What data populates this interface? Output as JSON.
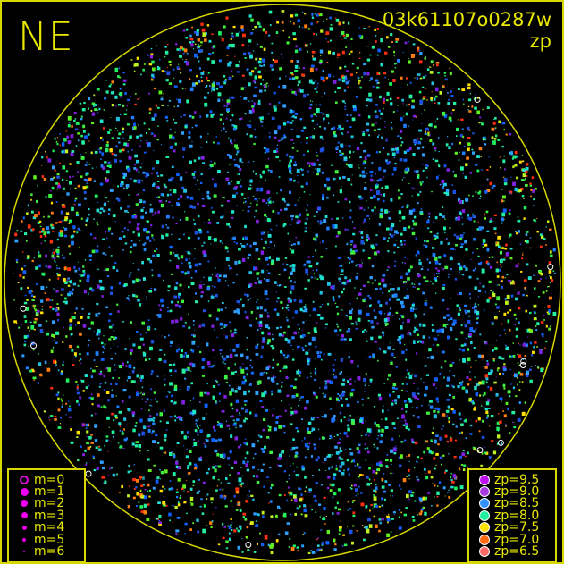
{
  "header": {
    "direction": "NE",
    "image_id": "03k61107o0287w",
    "mode": "zp"
  },
  "colors": {
    "frame": "#d8d800",
    "horizon_circle": "#d8d800",
    "background": "#000000"
  },
  "magnitude_legend": [
    {
      "label": "m=0",
      "size": 10,
      "hollow": true
    },
    {
      "label": "m=1",
      "size": 9
    },
    {
      "label": "m=2",
      "size": 8
    },
    {
      "label": "m=3",
      "size": 7
    },
    {
      "label": "m=4",
      "size": 5
    },
    {
      "label": "m=5",
      "size": 4
    },
    {
      "label": "m=6",
      "size": 2
    }
  ],
  "zp_legend": [
    {
      "label": "zp=9.5",
      "color": "#c010f0"
    },
    {
      "label": "zp=9.0",
      "color": "#a838e0"
    },
    {
      "label": "zp=8.5",
      "color": "#3090ff"
    },
    {
      "label": "zp=8.0",
      "color": "#20f0a0"
    },
    {
      "label": "zp=7.5",
      "color": "#ffe000"
    },
    {
      "label": "zp=7.0",
      "color": "#ff6a10"
    },
    {
      "label": "zp=6.5",
      "color": "#ff6868"
    }
  ]
}
